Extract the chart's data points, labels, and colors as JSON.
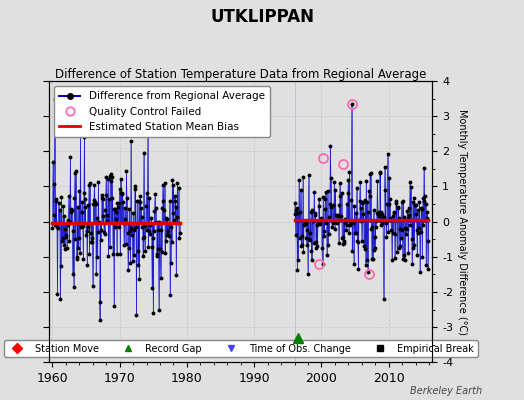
{
  "title": "UTKLIPPAN",
  "subtitle": "Difference of Station Temperature Data from Regional Average",
  "ylabel": "Monthly Temperature Anomaly Difference (°C)",
  "xlim": [
    1959.5,
    2016.5
  ],
  "ylim": [
    -4,
    4
  ],
  "yticks": [
    -4,
    -3,
    -2,
    -1,
    0,
    1,
    2,
    3,
    4
  ],
  "xticks": [
    1960,
    1970,
    1980,
    1990,
    2000,
    2010
  ],
  "bg_color": "#e0e0e0",
  "line_color": "#0000cc",
  "marker_color": "#000000",
  "bias_color": "#dd0000",
  "qc_color": "#ff69b4",
  "segment1_start": 1960,
  "segment1_end": 1978,
  "segment2_start": 1996,
  "segment2_end": 2015,
  "bias1": -0.05,
  "bias2": 0.05,
  "record_gap_x": 1996.5,
  "record_gap_y": -3.3,
  "watermark": "Berkeley Earth"
}
